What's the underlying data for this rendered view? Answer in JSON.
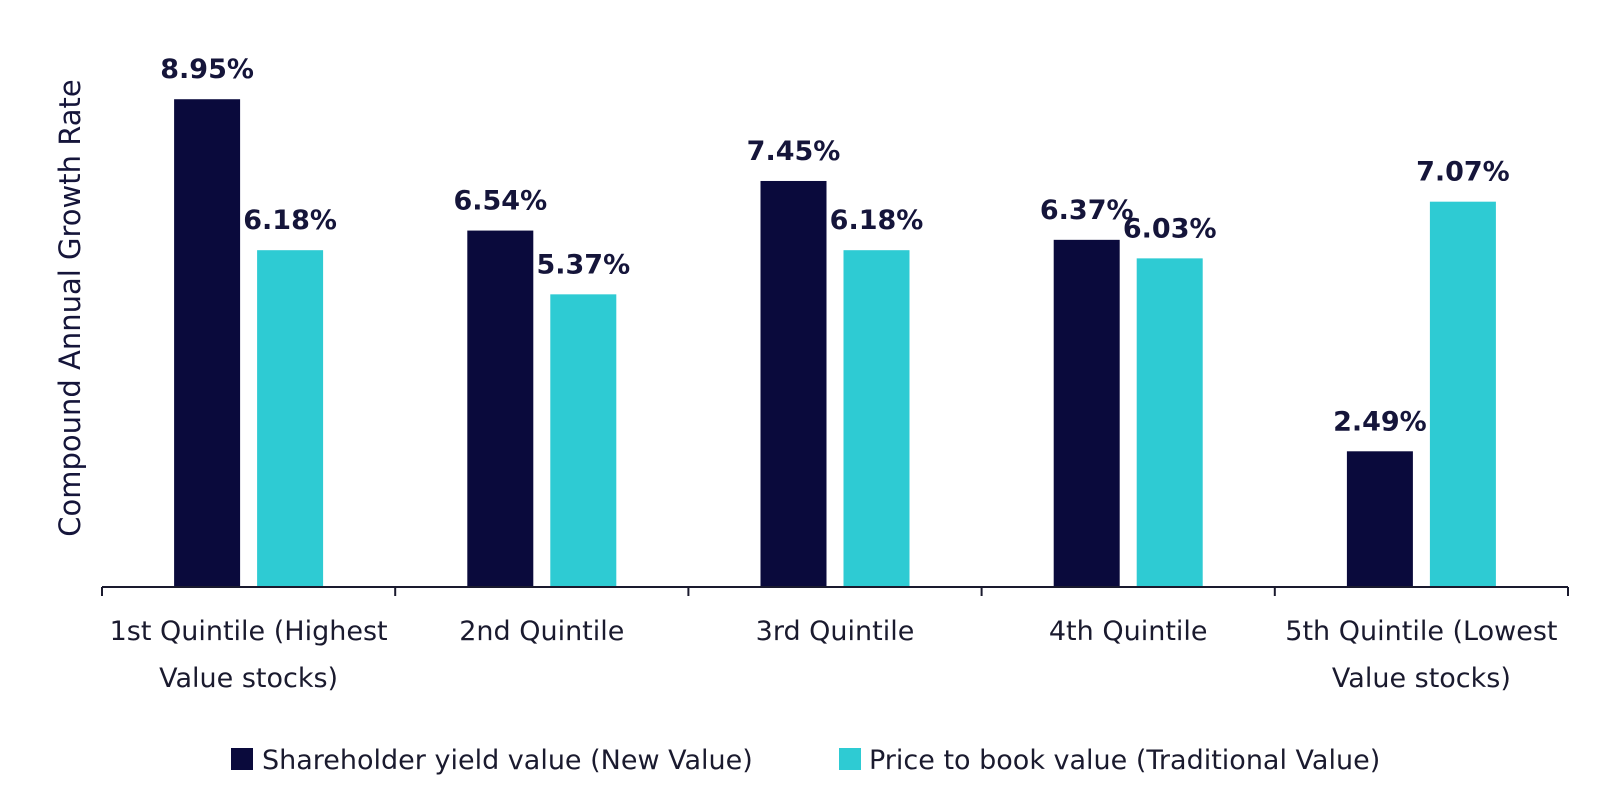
{
  "chart_data": {
    "type": "bar",
    "title": "",
    "xlabel": "",
    "ylabel": "Compound Annual Growth Rate",
    "ylim": [
      0,
      10
    ],
    "grid": false,
    "legend_position": "bottom",
    "categories": [
      [
        "1st Quintile (Highest",
        "Value stocks)"
      ],
      [
        "2nd Quintile"
      ],
      [
        "3rd Quintile"
      ],
      [
        "4th Quintile"
      ],
      [
        "5th Quintile (Lowest",
        "Value stocks)"
      ]
    ],
    "series": [
      {
        "name": "Shareholder yield value (New Value)",
        "color": "#0a0a3c",
        "values": [
          8.95,
          6.54,
          7.45,
          6.37,
          2.49
        ],
        "labels": [
          "8.95%",
          "6.54%",
          "7.45%",
          "6.37%",
          "2.49%"
        ]
      },
      {
        "name": "Price to book value (Traditional Value)",
        "color": "#2ecbd3",
        "values": [
          6.18,
          5.37,
          6.18,
          6.03,
          7.07
        ],
        "labels": [
          "6.18%",
          "5.37%",
          "6.18%",
          "6.03%",
          "7.07%"
        ]
      }
    ]
  }
}
